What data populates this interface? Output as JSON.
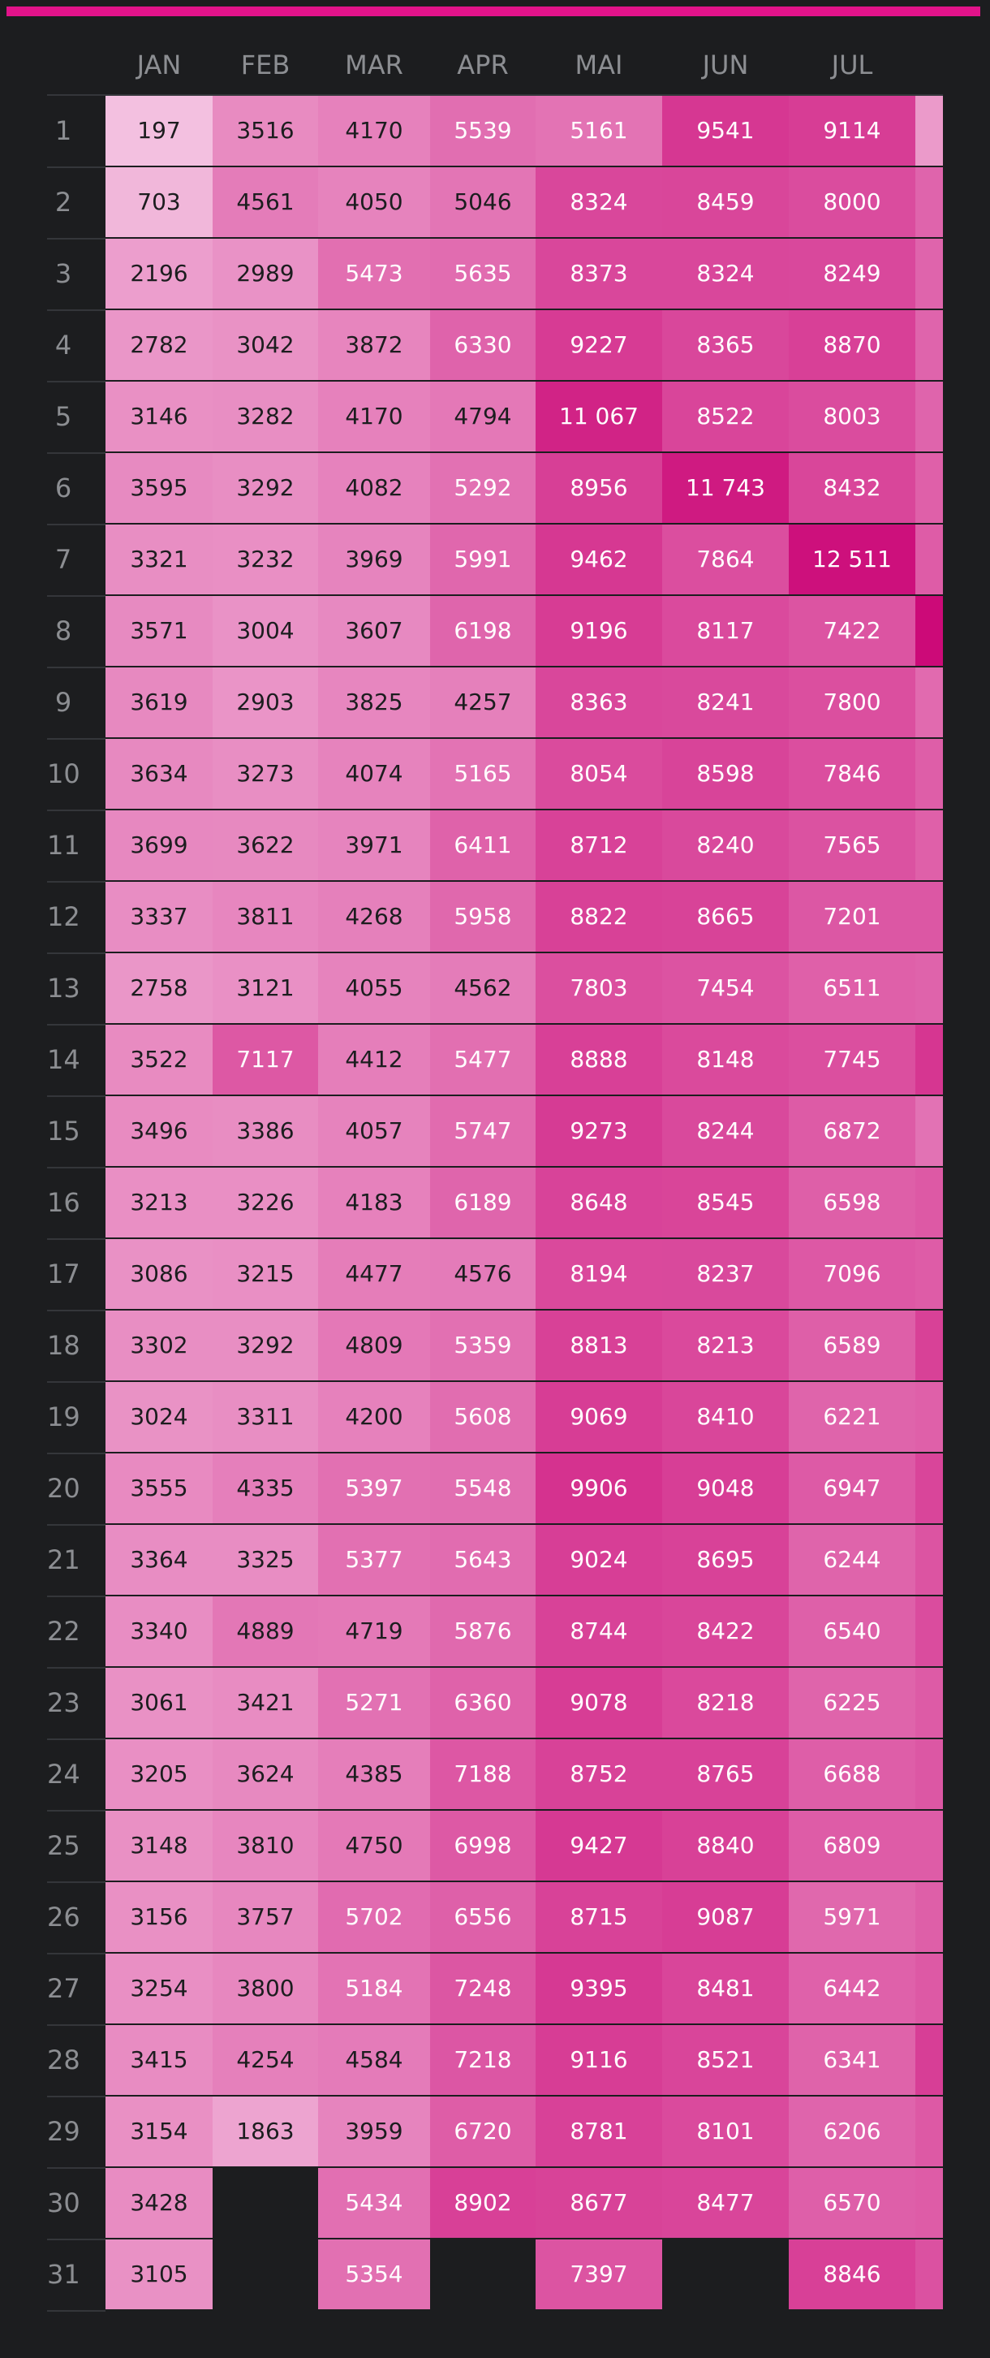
{
  "colors": {
    "background": "#1c1d1f",
    "accent": "#e2138a",
    "scale_low": "#f4c4e2",
    "scale_high": "#cc0a78",
    "label": "#8c8e92"
  },
  "chart_data": {
    "type": "heatmap",
    "title": "",
    "columns": [
      "JAN",
      "FEB",
      "MAR",
      "APR",
      "MAI",
      "JUN",
      "JUL"
    ],
    "rows": [
      "1",
      "2",
      "3",
      "4",
      "5",
      "6",
      "7",
      "8",
      "9",
      "10",
      "11",
      "12",
      "13",
      "14",
      "15",
      "16",
      "17",
      "18",
      "19",
      "20",
      "21",
      "22",
      "23",
      "24",
      "25",
      "26",
      "27",
      "28",
      "29",
      "30",
      "31"
    ],
    "values": [
      [
        197,
        3516,
        4170,
        5539,
        5161,
        9541,
        9114
      ],
      [
        703,
        4561,
        4050,
        5046,
        8324,
        8459,
        8000
      ],
      [
        2196,
        2989,
        5473,
        5635,
        8373,
        8324,
        8249
      ],
      [
        2782,
        3042,
        3872,
        6330,
        9227,
        8365,
        8870
      ],
      [
        3146,
        3282,
        4170,
        4794,
        11067,
        8522,
        8003
      ],
      [
        3595,
        3292,
        4082,
        5292,
        8956,
        11743,
        8432
      ],
      [
        3321,
        3232,
        3969,
        5991,
        9462,
        7864,
        12511
      ],
      [
        3571,
        3004,
        3607,
        6198,
        9196,
        8117,
        7422
      ],
      [
        3619,
        2903,
        3825,
        4257,
        8363,
        8241,
        7800
      ],
      [
        3634,
        3273,
        4074,
        5165,
        8054,
        8598,
        7846
      ],
      [
        3699,
        3622,
        3971,
        6411,
        8712,
        8240,
        7565
      ],
      [
        3337,
        3811,
        4268,
        5958,
        8822,
        8665,
        7201
      ],
      [
        2758,
        3121,
        4055,
        4562,
        7803,
        7454,
        6511
      ],
      [
        3522,
        7117,
        4412,
        5477,
        8888,
        8148,
        7745
      ],
      [
        3496,
        3386,
        4057,
        5747,
        9273,
        8244,
        6872
      ],
      [
        3213,
        3226,
        4183,
        6189,
        8648,
        8545,
        6598
      ],
      [
        3086,
        3215,
        4477,
        4576,
        8194,
        8237,
        7096
      ],
      [
        3302,
        3292,
        4809,
        5359,
        8813,
        8213,
        6589
      ],
      [
        3024,
        3311,
        4200,
        5608,
        9069,
        8410,
        6221
      ],
      [
        3555,
        4335,
        5397,
        5548,
        9906,
        9048,
        6947
      ],
      [
        3364,
        3325,
        5377,
        5643,
        9024,
        8695,
        6244
      ],
      [
        3340,
        4889,
        4719,
        5876,
        8744,
        8422,
        6540
      ],
      [
        3061,
        3421,
        5271,
        6360,
        9078,
        8218,
        6225
      ],
      [
        3205,
        3624,
        4385,
        7188,
        8752,
        8765,
        6688
      ],
      [
        3148,
        3810,
        4750,
        6998,
        9427,
        8840,
        6809
      ],
      [
        3156,
        3757,
        5702,
        6556,
        8715,
        9087,
        5971
      ],
      [
        3254,
        3800,
        5184,
        7248,
        9395,
        8481,
        6442
      ],
      [
        3415,
        4254,
        4584,
        7218,
        9116,
        8521,
        6341
      ],
      [
        3154,
        1863,
        3959,
        6720,
        8781,
        8101,
        6206
      ],
      [
        3428,
        null,
        5434,
        8902,
        8677,
        8477,
        6570
      ],
      [
        3105,
        null,
        5354,
        null,
        7397,
        null,
        8846
      ]
    ],
    "labels": [
      [
        "197",
        "3516",
        "4170",
        "5539",
        "5161",
        "9541",
        "9114"
      ],
      [
        "703",
        "4561",
        "4050",
        "5046",
        "8324",
        "8459",
        "8000"
      ],
      [
        "2196",
        "2989",
        "5473",
        "5635",
        "8373",
        "8324",
        "8249"
      ],
      [
        "2782",
        "3042",
        "3872",
        "6330",
        "9227",
        "8365",
        "8870"
      ],
      [
        "3146",
        "3282",
        "4170",
        "4794",
        "11 067",
        "8522",
        "8003"
      ],
      [
        "3595",
        "3292",
        "4082",
        "5292",
        "8956",
        "11 743",
        "8432"
      ],
      [
        "3321",
        "3232",
        "3969",
        "5991",
        "9462",
        "7864",
        "12 511"
      ],
      [
        "3571",
        "3004",
        "3607",
        "6198",
        "9196",
        "8117",
        "7422"
      ],
      [
        "3619",
        "2903",
        "3825",
        "4257",
        "8363",
        "8241",
        "7800"
      ],
      [
        "3634",
        "3273",
        "4074",
        "5165",
        "8054",
        "8598",
        "7846"
      ],
      [
        "3699",
        "3622",
        "3971",
        "6411",
        "8712",
        "8240",
        "7565"
      ],
      [
        "3337",
        "3811",
        "4268",
        "5958",
        "8822",
        "8665",
        "7201"
      ],
      [
        "2758",
        "3121",
        "4055",
        "4562",
        "7803",
        "7454",
        "6511"
      ],
      [
        "3522",
        "7117",
        "4412",
        "5477",
        "8888",
        "8148",
        "7745"
      ],
      [
        "3496",
        "3386",
        "4057",
        "5747",
        "9273",
        "8244",
        "6872"
      ],
      [
        "3213",
        "3226",
        "4183",
        "6189",
        "8648",
        "8545",
        "6598"
      ],
      [
        "3086",
        "3215",
        "4477",
        "4576",
        "8194",
        "8237",
        "7096"
      ],
      [
        "3302",
        "3292",
        "4809",
        "5359",
        "8813",
        "8213",
        "6589"
      ],
      [
        "3024",
        "3311",
        "4200",
        "5608",
        "9069",
        "8410",
        "6221"
      ],
      [
        "3555",
        "4335",
        "5397",
        "5548",
        "9906",
        "9048",
        "6947"
      ],
      [
        "3364",
        "3325",
        "5377",
        "5643",
        "9024",
        "8695",
        "6244"
      ],
      [
        "3340",
        "4889",
        "4719",
        "5876",
        "8744",
        "8422",
        "6540"
      ],
      [
        "3061",
        "3421",
        "5271",
        "6360",
        "9078",
        "8218",
        "6225"
      ],
      [
        "3205",
        "3624",
        "4385",
        "7188",
        "8752",
        "8765",
        "6688"
      ],
      [
        "3148",
        "3810",
        "4750",
        "6998",
        "9427",
        "8840",
        "6809"
      ],
      [
        "3156",
        "3757",
        "5702",
        "6556",
        "8715",
        "9087",
        "5971"
      ],
      [
        "3254",
        "3800",
        "5184",
        "7248",
        "9395",
        "8481",
        "6442"
      ],
      [
        "3415",
        "4254",
        "4584",
        "7218",
        "9116",
        "8521",
        "6341"
      ],
      [
        "3154",
        "1863",
        "3959",
        "6720",
        "8781",
        "8101",
        "6206"
      ],
      [
        "3428",
        "",
        "5434",
        "8902",
        "8677",
        "8477",
        "6570"
      ],
      [
        "3105",
        "",
        "5354",
        "",
        "7397",
        "",
        "8846"
      ]
    ],
    "partial_next_column_values": [
      2500,
      6200,
      6200,
      6200,
      6200,
      6500,
      6800,
      13200,
      5800,
      6700,
      6500,
      7200,
      6300,
      9600,
      5200,
      7000,
      6800,
      8800,
      6500,
      8500,
      7400,
      8000,
      6900,
      7200,
      6800,
      6600,
      7000,
      9000,
      7000,
      6800,
      7600
    ],
    "color_scale": {
      "min": 0,
      "max": 13000,
      "low": "#f4c4e2",
      "high": "#cc0a78"
    },
    "grid": true,
    "legend": "none"
  }
}
